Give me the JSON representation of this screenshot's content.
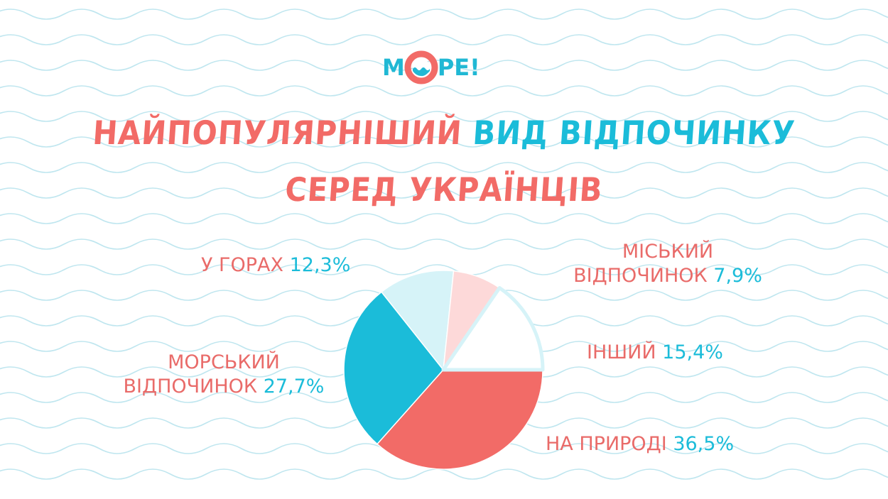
{
  "logo": {
    "text_before": "M",
    "text_after": "PE!"
  },
  "title": {
    "line1_part1": "НАЙПОПУЛЯРНІШИЙ",
    "line1_part2": "ВИД ВІДПОЧИНКУ",
    "line2": "СЕРЕД УКРАЇНЦІВ"
  },
  "colors": {
    "coral": "#f26b67",
    "cyan": "#1bbcd9",
    "light_cyan": "#d6f3f8",
    "light_pink": "#fdd9d9",
    "wave": "#bfe6ef"
  },
  "chart_data": {
    "type": "pie",
    "slices": [
      {
        "label": "НА ПРИРОДІ",
        "value_text": "36,5%",
        "value": 36.5,
        "color": "#f26b67"
      },
      {
        "label": "МОРСЬКИЙ ВІДПОЧИНОК",
        "value_text": "27,7%",
        "value": 27.7,
        "color": "#1bbcd9"
      },
      {
        "label": "У ГОРАХ",
        "value_text": "12,3%",
        "value": 12.3,
        "color": "#d6f3f8"
      },
      {
        "label": "МІСЬКИЙ ВІДПОЧИНОК",
        "value_text": "7,9%",
        "value": 7.9,
        "color": "#fdd9d9"
      },
      {
        "label": "ІНШИЙ",
        "value_text": "15,4%",
        "value": 15.4,
        "color": "#ffffff"
      }
    ]
  },
  "labels": {
    "mountains": {
      "name": "У ГОРАХ",
      "pct": "12,3%"
    },
    "city_line1": "МІСЬКИЙ",
    "city_line2": "ВІДПОЧИНОК",
    "city_pct": "7,9%",
    "other": {
      "name": "ІНШИЙ",
      "pct": "15,4%"
    },
    "sea_line1": "МОРСЬКИЙ",
    "sea_line2": "ВІДПОЧИНОК",
    "sea_pct": "27,7%",
    "nature": {
      "name": "НА ПРИРОДІ",
      "pct": "36,5%"
    }
  }
}
